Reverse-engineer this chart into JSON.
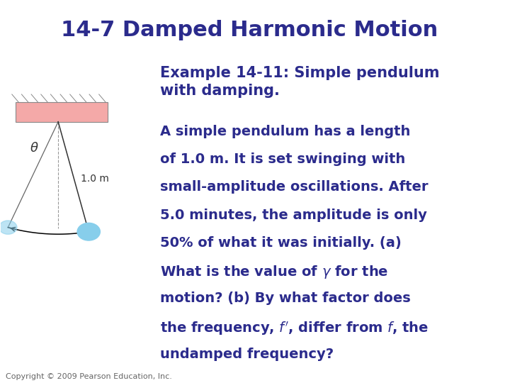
{
  "title": "14-7 Damped Harmonic Motion",
  "title_color": "#2B2B8C",
  "title_fontsize": 22,
  "title_weight": "bold",
  "bg_color": "#FFFFFF",
  "example_title": "Example 14-11: Simple pendulum\nwith damping.",
  "example_title_fontsize": 15,
  "body_fontsize": 14,
  "text_color": "#2B2B8C",
  "copyright": "Copyright © 2009 Pearson Education, Inc.",
  "copyright_fontsize": 8,
  "ceiling_color": "#F4A9A8",
  "ceiling_edge": "#888888",
  "ball_color": "#87CEEB",
  "label_1m": "1.0 m",
  "label_theta": "θ",
  "body_lines": [
    "A simple pendulum has a length",
    "of 1.0 m. It is set swinging with",
    "small-amplitude oscillations. After",
    "5.0 minutes, the amplitude is only",
    "50% of what it was initially. (a)",
    "What is the value of $\\gamma$ for the",
    "motion? (b) By what factor does",
    "the frequency, $f'$, differ from $f$, the",
    "undamped frequency?"
  ]
}
